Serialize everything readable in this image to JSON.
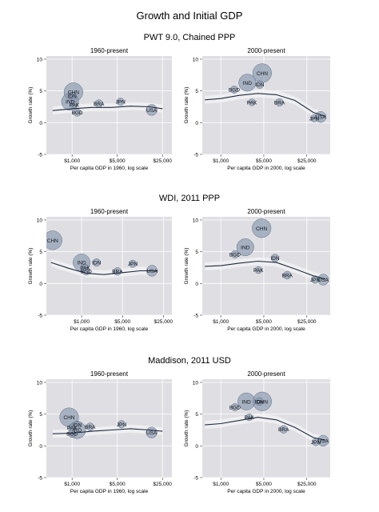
{
  "figure_title": "Growth and Initial GDP",
  "colors": {
    "panel_bg": "#dfdfe3",
    "grid": "#ffffff",
    "bubble_fill": "#8c9bb0",
    "bubble_stroke": "#5f6f86",
    "trend": "#1e2a40",
    "band": "#f4f4f6"
  },
  "chart_data": [
    {
      "type": "scatter",
      "source": "PWT 9.0, Chained PPP",
      "title": "1960-present",
      "xlabel": "Per capita GDP in 1960, log scale",
      "ylabel": "Growth rate (%)",
      "x_scale": "log",
      "xlim": [
        400,
        35000
      ],
      "ylim": [
        -5,
        10.5
      ],
      "xticks": [
        1000,
        5000,
        25000
      ],
      "xtick_labels": [
        "$1,000",
        "$5,000",
        "$25,000"
      ],
      "yticks": [
        -5,
        0,
        5,
        10
      ],
      "grid": true,
      "labeled_points": [
        {
          "label": "CHN",
          "x": 1050,
          "y": 4.8,
          "size": 58
        },
        {
          "label": "IDN",
          "x": 1000,
          "y": 4.2,
          "size": 10
        },
        {
          "label": "IND",
          "x": 930,
          "y": 3.3,
          "size": 48
        },
        {
          "label": "PAK",
          "x": 1080,
          "y": 2.8,
          "size": 8
        },
        {
          "label": "BGD",
          "x": 1200,
          "y": 1.6,
          "size": 9
        },
        {
          "label": "BRA",
          "x": 2600,
          "y": 3.0,
          "size": 10
        },
        {
          "label": "JPN",
          "x": 5600,
          "y": 3.3,
          "size": 9
        },
        {
          "label": "USA",
          "x": 17000,
          "y": 2.0,
          "size": 20
        }
      ],
      "trend": {
        "x": [
          500,
          1000,
          2000,
          4000,
          8000,
          16000,
          25000
        ],
        "y": [
          1.9,
          2.2,
          2.4,
          2.4,
          2.6,
          2.5,
          2.2
        ]
      }
    },
    {
      "type": "scatter",
      "source": "PWT 9.0, Chained PPP",
      "title": "2000-present",
      "xlabel": "Per capita GDP in 2000, log scale",
      "ylabel": "Growth rate (%)",
      "x_scale": "log",
      "xlim": [
        500,
        60000
      ],
      "ylim": [
        -5,
        10.5
      ],
      "xticks": [
        1000,
        5000,
        25000
      ],
      "xtick_labels": [
        "$1,000",
        "$5,000",
        "$25,000"
      ],
      "yticks": [
        -5,
        0,
        5,
        10
      ],
      "grid": true,
      "labeled_points": [
        {
          "label": "CHN",
          "x": 4700,
          "y": 7.8,
          "size": 58
        },
        {
          "label": "IND",
          "x": 2700,
          "y": 6.3,
          "size": 48
        },
        {
          "label": "IDN",
          "x": 4300,
          "y": 6.0,
          "size": 10
        },
        {
          "label": "BGD",
          "x": 1650,
          "y": 5.2,
          "size": 9
        },
        {
          "label": "PAK",
          "x": 3200,
          "y": 3.2,
          "size": 8
        },
        {
          "label": "BRA",
          "x": 9000,
          "y": 3.2,
          "size": 10
        },
        {
          "label": "JPN",
          "x": 33000,
          "y": 0.7,
          "size": 9
        },
        {
          "label": "USA",
          "x": 42000,
          "y": 0.9,
          "size": 20
        }
      ],
      "trend": {
        "x": [
          550,
          1000,
          2000,
          4000,
          8000,
          16000,
          32000,
          50000
        ],
        "y": [
          3.6,
          3.8,
          4.3,
          4.6,
          4.4,
          3.5,
          1.6,
          1.0
        ]
      }
    },
    {
      "type": "scatter",
      "source": "WDI, 2011 PPP",
      "title": "1960-present",
      "xlabel": "Per capita GDP in 1960, log scale",
      "ylabel": "Growth rate (%)",
      "x_scale": "log",
      "xlim": [
        250,
        35000
      ],
      "ylim": [
        -5,
        10.5
      ],
      "xticks": [
        1000,
        5000,
        25000
      ],
      "xtick_labels": [
        "$1,000",
        "$5,000",
        "$25,000"
      ],
      "yticks": [
        -5,
        0,
        5,
        10
      ],
      "grid": true,
      "labeled_points": [
        {
          "label": "CHN",
          "x": 320,
          "y": 6.8,
          "size": 58
        },
        {
          "label": "IND",
          "x": 1000,
          "y": 3.3,
          "size": 48
        },
        {
          "label": "IDN",
          "x": 1800,
          "y": 3.3,
          "size": 10
        },
        {
          "label": "PAK",
          "x": 1150,
          "y": 2.5,
          "size": 8
        },
        {
          "label": "BGD",
          "x": 1200,
          "y": 1.9,
          "size": 9
        },
        {
          "label": "BRA",
          "x": 4100,
          "y": 1.9,
          "size": 10
        },
        {
          "label": "JPN",
          "x": 7500,
          "y": 3.1,
          "size": 9
        },
        {
          "label": "USA",
          "x": 16000,
          "y": 2.0,
          "size": 20
        }
      ],
      "trend": {
        "x": [
          300,
          600,
          1200,
          2400,
          5000,
          10000,
          20000
        ],
        "y": [
          3.3,
          2.4,
          1.6,
          1.4,
          1.7,
          2.0,
          2.0
        ]
      }
    },
    {
      "type": "scatter",
      "source": "WDI, 2011 PPP",
      "title": "2000-present",
      "xlabel": "Per capita GDP in 2000, log scale",
      "ylabel": "Growth rate (%)",
      "x_scale": "log",
      "xlim": [
        500,
        60000
      ],
      "ylim": [
        -5,
        10.5
      ],
      "xticks": [
        1000,
        5000,
        25000
      ],
      "xtick_labels": [
        "$1,000",
        "$5,000",
        "$25,000"
      ],
      "yticks": [
        -5,
        0,
        5,
        10
      ],
      "grid": true,
      "labeled_points": [
        {
          "label": "CHN",
          "x": 4600,
          "y": 8.7,
          "size": 58
        },
        {
          "label": "IND",
          "x": 2500,
          "y": 5.7,
          "size": 48
        },
        {
          "label": "BGD",
          "x": 1700,
          "y": 4.6,
          "size": 9
        },
        {
          "label": "IDN",
          "x": 7600,
          "y": 4.0,
          "size": 10
        },
        {
          "label": "PAK",
          "x": 4100,
          "y": 2.1,
          "size": 8
        },
        {
          "label": "BRA",
          "x": 12000,
          "y": 1.3,
          "size": 10
        },
        {
          "label": "JPN",
          "x": 34000,
          "y": 0.6,
          "size": 9
        },
        {
          "label": "USA",
          "x": 46000,
          "y": 0.6,
          "size": 20
        }
      ],
      "trend": {
        "x": [
          550,
          1000,
          2000,
          4000,
          8000,
          16000,
          32000,
          50000
        ],
        "y": [
          2.7,
          2.8,
          3.2,
          3.5,
          3.3,
          2.3,
          1.2,
          0.7
        ]
      }
    },
    {
      "type": "scatter",
      "source": "Maddison, 2011 USD",
      "title": "1960-present",
      "xlabel": "Per capita GDP in 1960, log scale",
      "ylabel": "Growth rate (%)",
      "x_scale": "log",
      "xlim": [
        400,
        35000
      ],
      "ylim": [
        -5,
        10.5
      ],
      "xticks": [
        1000,
        5000,
        25000
      ],
      "xtick_labels": [
        "$1,000",
        "$5,000",
        "$25,000"
      ],
      "yticks": [
        -5,
        0,
        5,
        10
      ],
      "grid": true,
      "labeled_points": [
        {
          "label": "CHN",
          "x": 900,
          "y": 4.5,
          "size": 58
        },
        {
          "label": "IDN",
          "x": 1200,
          "y": 3.3,
          "size": 10
        },
        {
          "label": "PAK",
          "x": 1000,
          "y": 2.9,
          "size": 8
        },
        {
          "label": "IND",
          "x": 1200,
          "y": 2.5,
          "size": 48
        },
        {
          "label": "BGD",
          "x": 1000,
          "y": 1.9,
          "size": 9
        },
        {
          "label": "BRA",
          "x": 1900,
          "y": 3.0,
          "size": 10
        },
        {
          "label": "JPN",
          "x": 5800,
          "y": 3.4,
          "size": 9
        },
        {
          "label": "USA",
          "x": 17000,
          "y": 2.1,
          "size": 20
        }
      ],
      "trend": {
        "x": [
          500,
          1000,
          2000,
          4000,
          8000,
          16000,
          25000
        ],
        "y": [
          1.9,
          2.0,
          2.3,
          2.5,
          2.7,
          2.5,
          2.3
        ]
      }
    },
    {
      "type": "scatter",
      "source": "Maddison, 2011 USD",
      "title": "2000-present",
      "xlabel": "Per capita GDP in 2000, log scale",
      "ylabel": "Growth rate (%)",
      "x_scale": "log",
      "xlim": [
        500,
        60000
      ],
      "ylim": [
        -5,
        10.5
      ],
      "xticks": [
        1000,
        5000,
        25000
      ],
      "xtick_labels": [
        "$1,000",
        "$5,000",
        "$25,000"
      ],
      "yticks": [
        -5,
        0,
        5,
        10
      ],
      "grid": true,
      "labeled_points": [
        {
          "label": "CHN",
          "x": 4700,
          "y": 7.0,
          "size": 58
        },
        {
          "label": "IND",
          "x": 2600,
          "y": 7.0,
          "size": 48
        },
        {
          "label": "IDN",
          "x": 4200,
          "y": 7.0,
          "size": 10
        },
        {
          "label": "BGD",
          "x": 1700,
          "y": 6.1,
          "size": 9
        },
        {
          "label": "PAK",
          "x": 2900,
          "y": 4.5,
          "size": 8
        },
        {
          "label": "BRA",
          "x": 10500,
          "y": 2.6,
          "size": 10
        },
        {
          "label": "JPN",
          "x": 35000,
          "y": 0.6,
          "size": 9
        },
        {
          "label": "USA",
          "x": 46000,
          "y": 0.8,
          "size": 20
        }
      ],
      "trend": {
        "x": [
          550,
          1000,
          2000,
          4000,
          8000,
          16000,
          32000,
          50000
        ],
        "y": [
          3.3,
          3.5,
          4.0,
          4.5,
          4.1,
          2.9,
          1.3,
          0.9
        ]
      }
    }
  ]
}
